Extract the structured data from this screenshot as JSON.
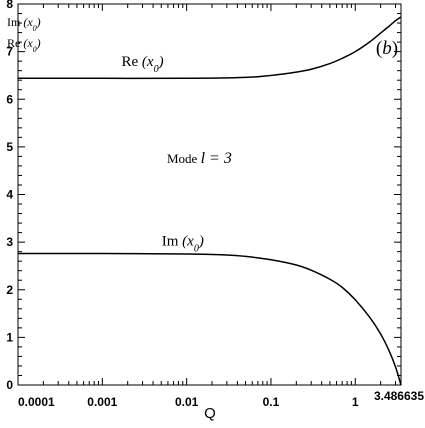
{
  "chart_data": {
    "type": "line",
    "xscale": "log",
    "xlim": [
      0.0001,
      3.486635
    ],
    "ylim": [
      0,
      8
    ],
    "xticks": [
      {
        "value": 0.0001,
        "label": "0.0001"
      },
      {
        "value": 0.001,
        "label": "0.001"
      },
      {
        "value": 0.01,
        "label": "0.01"
      },
      {
        "value": 0.1,
        "label": "0.1"
      },
      {
        "value": 1,
        "label": "1"
      },
      {
        "value": 3.486635,
        "label": "3.486635"
      }
    ],
    "yticks": [
      0,
      1,
      2,
      3,
      4,
      5,
      6,
      7,
      8
    ],
    "xlabel": "Q",
    "ylabel": "",
    "grid": false,
    "panel_label": {
      "prefix": "(",
      "letter": "b",
      "suffix": ")"
    },
    "legend_lines": [
      {
        "name": "Im",
        "symbol": "(x",
        "subscript": "0",
        "close": ")"
      },
      {
        "name": "Re",
        "symbol": "(x",
        "subscript": "0",
        "close": ")"
      }
    ],
    "annotation": {
      "prefix": "Mode ",
      "l": "l",
      "rest": " = 3"
    },
    "series": [
      {
        "name": "Re",
        "symbol": "(x",
        "subscript": "0",
        "close": ")",
        "label_at": {
          "x": 0.003,
          "y": 6.7
        },
        "x": [
          0.0001,
          0.001,
          0.01,
          0.05,
          0.1,
          0.2,
          0.3,
          0.5,
          0.7,
          1.0,
          1.5,
          2.0,
          2.5,
          3.0,
          3.486635
        ],
        "y": [
          6.44,
          6.44,
          6.44,
          6.46,
          6.5,
          6.57,
          6.63,
          6.75,
          6.86,
          7.0,
          7.21,
          7.39,
          7.53,
          7.65,
          7.73
        ]
      },
      {
        "name": "Im",
        "symbol": "(x",
        "subscript": "0",
        "close": ")",
        "label_at": {
          "x": 0.009,
          "y": 2.93
        },
        "x": [
          0.0001,
          0.001,
          0.01,
          0.03,
          0.05,
          0.1,
          0.2,
          0.3,
          0.5,
          0.7,
          1.0,
          1.5,
          2.0,
          2.5,
          3.0,
          3.486635
        ],
        "y": [
          2.76,
          2.76,
          2.75,
          2.73,
          2.7,
          2.63,
          2.52,
          2.41,
          2.22,
          2.05,
          1.79,
          1.41,
          1.07,
          0.73,
          0.38,
          0.0
        ]
      }
    ]
  }
}
